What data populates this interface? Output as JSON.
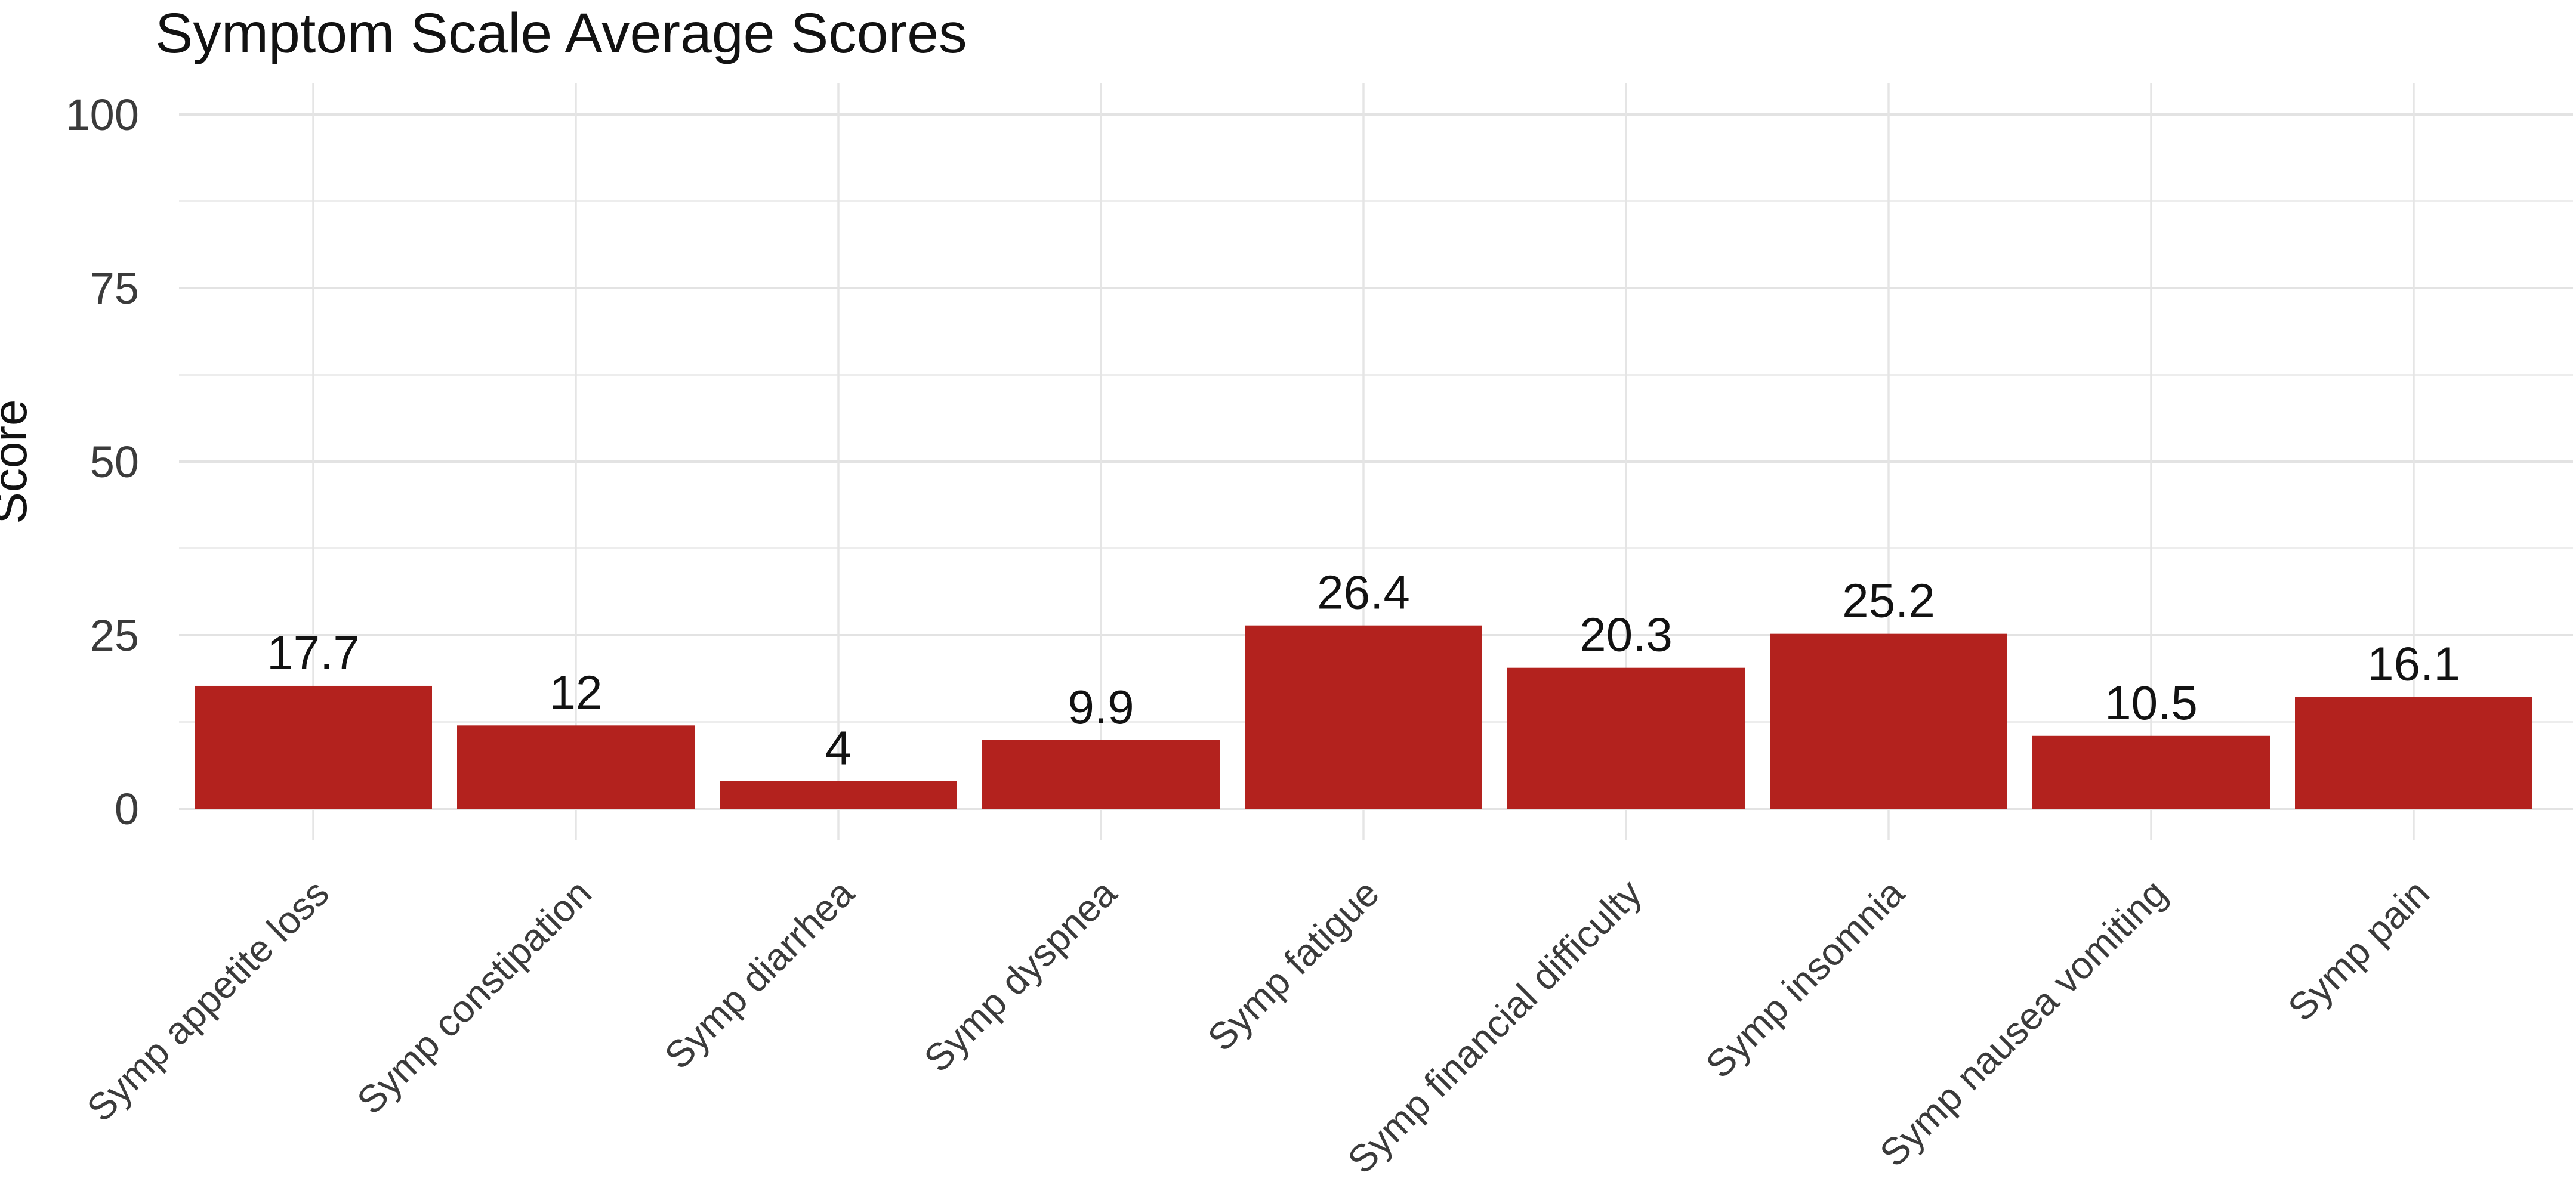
{
  "chart_data": {
    "type": "bar",
    "title": "Symptom Scale Average Scores",
    "ylabel": "Score",
    "xlabel": "",
    "categories": [
      "Symp appetite loss",
      "Symp constipation",
      "Symp diarrhea",
      "Symp dyspnea",
      "Symp fatigue",
      "Symp financial difficulty",
      "Symp insomnia",
      "Symp nausea vomiting",
      "Symp pain"
    ],
    "values": [
      17.7,
      12,
      4,
      9.9,
      26.4,
      20.3,
      25.2,
      10.5,
      16.1
    ],
    "value_labels": [
      "17.7",
      "12",
      "4",
      "9.9",
      "26.4",
      "20.3",
      "25.2",
      "10.5",
      "16.1"
    ],
    "ylim": [
      0,
      100
    ],
    "yticks": [
      0,
      25,
      50,
      75,
      100
    ],
    "ytick_labels": [
      "0",
      "25",
      "50",
      "75",
      "100"
    ],
    "minor_yticks": [
      12.5,
      37.5,
      62.5,
      87.5
    ],
    "legend": "none",
    "grid": "horizontal major and minor lines, vertical major lines at category centers",
    "x_label_rotation_deg": 45,
    "colors": {
      "bar_fill": "#B3221E",
      "background": "#FFFFFF",
      "grid_major": "#E3E3E3",
      "grid_minor": "#EDEDED",
      "grid_vertical": "#E5E5E5",
      "axis_text": "#3b3b3b",
      "title_text": "#121212"
    }
  }
}
